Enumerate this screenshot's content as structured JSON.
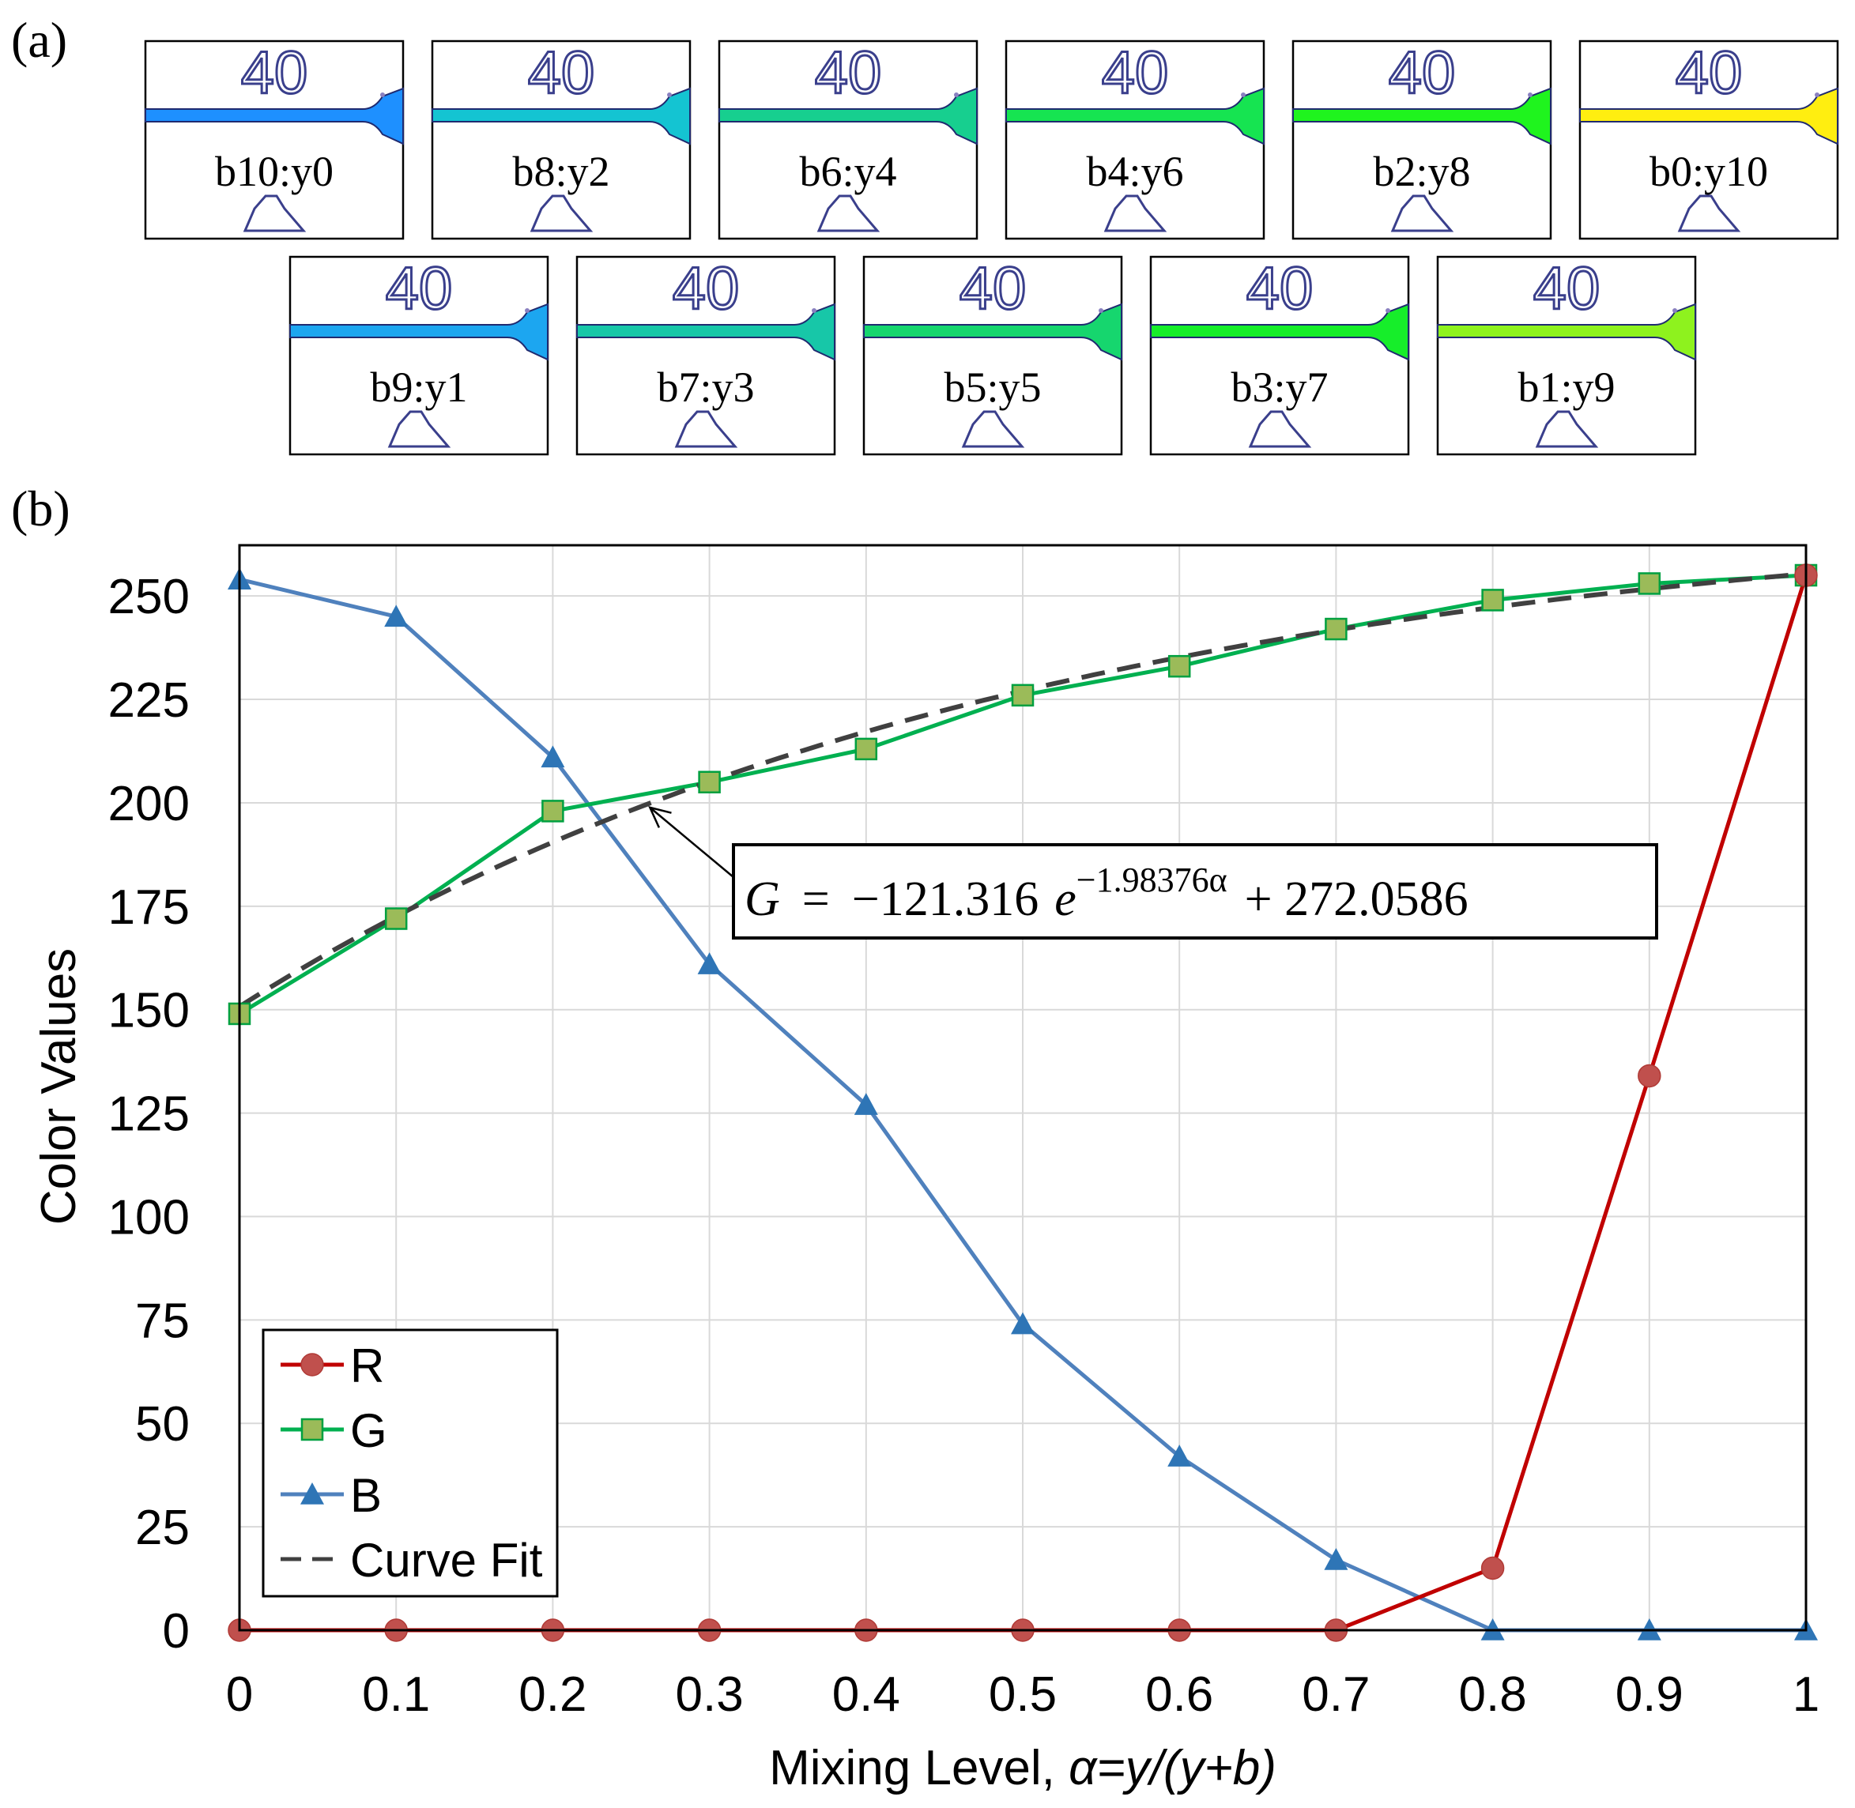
{
  "panel_a": {
    "label": "(a)",
    "badge_text": "40",
    "row1": [
      {
        "label": "b10:y0",
        "color": "#1e90ff"
      },
      {
        "label": "b8:y2",
        "color": "#14c4d2"
      },
      {
        "label": "b6:y4",
        "color": "#17cf8f"
      },
      {
        "label": "b4:y6",
        "color": "#16e451"
      },
      {
        "label": "b2:y8",
        "color": "#1ff41e"
      },
      {
        "label": "b0:y10",
        "color": "#ffee10"
      }
    ],
    "row2": [
      {
        "label": "b9:y1",
        "color": "#1ca6f0"
      },
      {
        "label": "b7:y3",
        "color": "#17c7a8"
      },
      {
        "label": "b5:y5",
        "color": "#16d66e"
      },
      {
        "label": "b3:y7",
        "color": "#16ee2a"
      },
      {
        "label": "b1:y9",
        "color": "#8ef21e"
      }
    ]
  },
  "panel_b_label": "(b)",
  "chart_data": {
    "type": "line",
    "xlabel": "Mixing Level, α=y/(y+b)",
    "xlabel_prefix": "Mixing Level, ",
    "xlabel_math": "α=y/(y+b)",
    "ylabel": "Color Values",
    "xlim": [
      0,
      1
    ],
    "ylim": [
      0,
      260
    ],
    "grid": true,
    "x": [
      0,
      0.1,
      0.2,
      0.3,
      0.4,
      0.5,
      0.6,
      0.7,
      0.8,
      0.9,
      1
    ],
    "xtick_labels": [
      "0",
      "0.1",
      "0.2",
      "0.3",
      "0.4",
      "0.5",
      "0.6",
      "0.7",
      "0.8",
      "0.9",
      "1"
    ],
    "yticks": [
      0,
      25,
      50,
      75,
      100,
      125,
      150,
      175,
      200,
      225,
      250
    ],
    "ytick_labels": [
      "0",
      "25",
      "50",
      "75",
      "100",
      "125",
      "150",
      "175",
      "200",
      "225",
      "250"
    ],
    "series": [
      {
        "name": "R",
        "color": "#c00000",
        "marker": "circle",
        "marker_color": "#c0504d",
        "values": [
          0,
          0,
          0,
          0,
          0,
          0,
          0,
          0,
          15,
          134,
          255
        ]
      },
      {
        "name": "G",
        "color": "#00b050",
        "marker": "square",
        "marker_color": "#9bbb59",
        "values": [
          149,
          172,
          198,
          205,
          213,
          226,
          233,
          242,
          249,
          253,
          255
        ]
      },
      {
        "name": "B",
        "color": "#4f81bd",
        "marker": "triangle",
        "marker_color": "#2e75b6",
        "values": [
          254,
          245,
          211,
          161,
          127,
          74,
          42,
          17,
          0,
          0,
          0
        ]
      }
    ],
    "curve_fit": {
      "name": "Curve Fit",
      "color": "#404040",
      "style": "dashed",
      "a": -121.316,
      "b": -1.98376,
      "c": 272.0586
    },
    "annotation": {
      "lhs": "G",
      "equals": "=",
      "coef": "−121.316",
      "base": "e",
      "exponent": "−1.98376α",
      "rest": "+ 272.0586",
      "points_to_alpha": 0.26
    },
    "legend_position": "bottom-left"
  }
}
